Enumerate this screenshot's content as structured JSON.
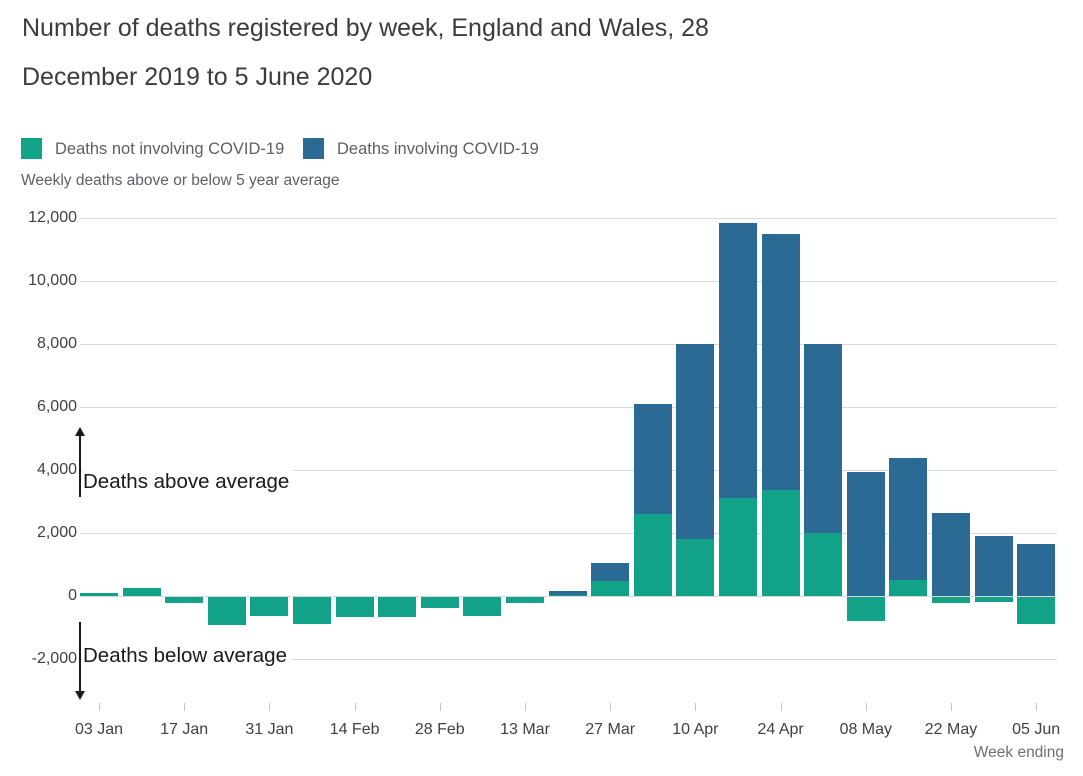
{
  "title": "Number of deaths registered by week, England and Wales, 28 December 2019 to 5 June 2020",
  "subtitle": "Weekly deaths above or below 5 year average",
  "legend": {
    "items": [
      {
        "label": "Deaths not involving COVID-19",
        "color": "#11a287"
      },
      {
        "label": "Deaths involving COVID-19",
        "color": "#2b6a94"
      }
    ]
  },
  "annotations": {
    "above": "Deaths above average",
    "below": "Deaths below average"
  },
  "x_axis_title": "Week ending",
  "chart_data": {
    "type": "bar",
    "stacked": true,
    "title": "Number of deaths registered by week, England and Wales, 28 December 2019 to 5 June 2020",
    "ylabel": "Weekly deaths above or below 5 year average",
    "xlabel": "Week ending",
    "grid": "horizontal",
    "legend_position": "top",
    "ylim": [
      -2800,
      12400
    ],
    "categories": [
      "03 Jan",
      "10 Jan",
      "17 Jan",
      "24 Jan",
      "31 Jan",
      "07 Feb",
      "14 Feb",
      "21 Feb",
      "28 Feb",
      "06 Mar",
      "13 Mar",
      "20 Mar",
      "27 Mar",
      "03 Apr",
      "10 Apr",
      "17 Apr",
      "24 Apr",
      "01 May",
      "08 May",
      "15 May",
      "22 May",
      "29 May",
      "05 Jun"
    ],
    "x_tick_label_every": 2,
    "series": [
      {
        "name": "Deaths not involving COVID-19",
        "color": "#11a287",
        "values": [
          100,
          250,
          -200,
          -900,
          -600,
          -850,
          -650,
          -650,
          -350,
          -600,
          -200,
          40,
          480,
          2600,
          1800,
          3100,
          3350,
          2000,
          -750,
          500,
          -200,
          -150,
          -850
        ]
      },
      {
        "name": "Deaths involving COVID-19",
        "color": "#2b6a94",
        "values": [
          0,
          0,
          0,
          0,
          0,
          0,
          0,
          0,
          0,
          0,
          0,
          120,
          570,
          3500,
          6200,
          8750,
          8150,
          6000,
          3950,
          3870,
          2650,
          1900,
          1650
        ]
      }
    ],
    "ytick_values": [
      12000,
      10000,
      8000,
      6000,
      4000,
      2000,
      0,
      -2000
    ],
    "ytick_labels": [
      "12,000",
      "10,000",
      "8,000",
      "6,000",
      "4,000",
      "2,000",
      "0",
      "-2,000"
    ]
  }
}
